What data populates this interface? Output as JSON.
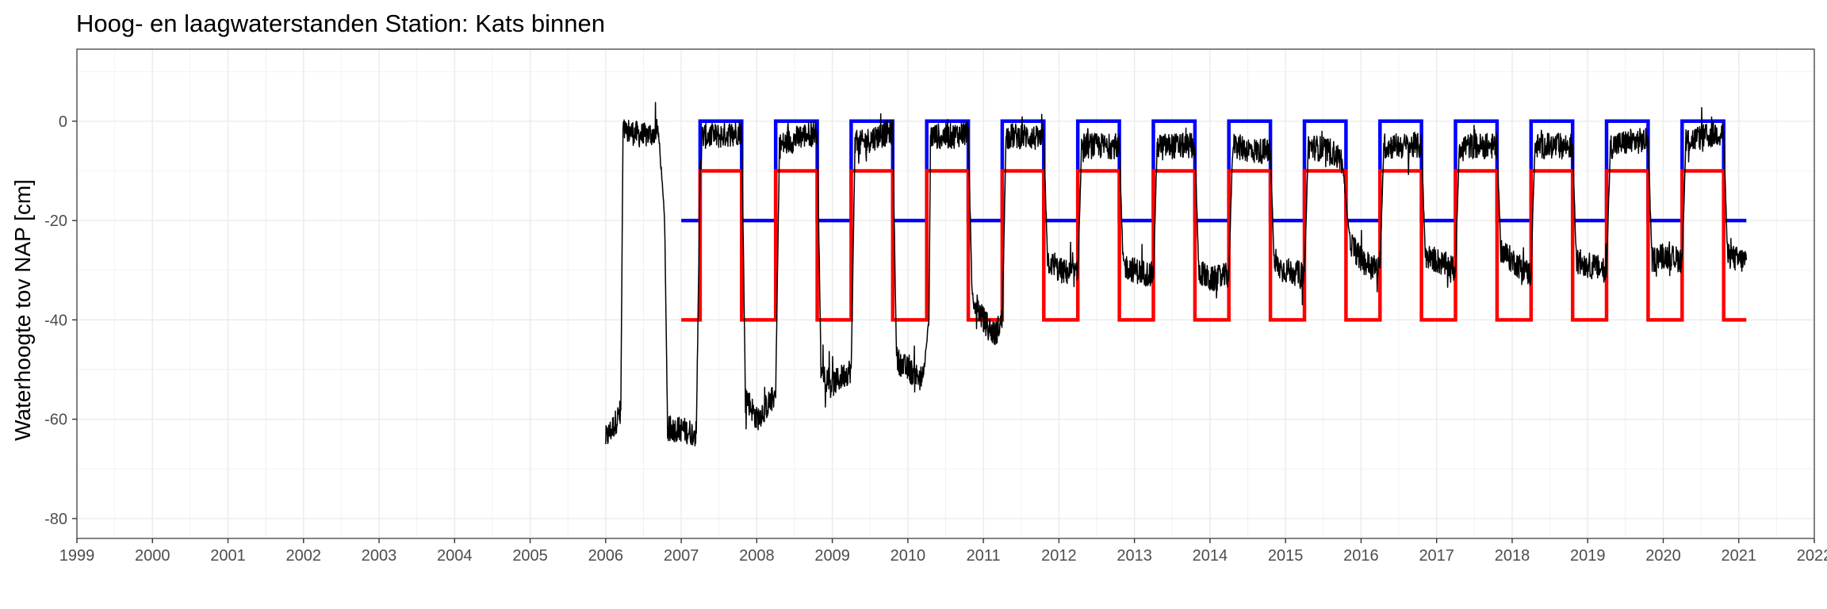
{
  "chart_data": {
    "type": "line",
    "title": "Hoog- en laagwaterstanden Station: Kats binnen",
    "xlabel": "",
    "ylabel": "Waterhoogte tov NAP [cm]",
    "xlim": [
      1999,
      2022
    ],
    "ylim": [
      -84,
      14.5
    ],
    "x_ticks": [
      "1999",
      "2000",
      "2001",
      "2002",
      "2003",
      "2004",
      "2005",
      "2006",
      "2007",
      "2008",
      "2009",
      "2010",
      "2011",
      "2012",
      "2013",
      "2014",
      "2015",
      "2016",
      "2017",
      "2018",
      "2019",
      "2020",
      "2021",
      "2022"
    ],
    "y_ticks": [
      0,
      -20,
      -40,
      -60,
      -80
    ],
    "grid": true,
    "legend": "none",
    "series": [
      {
        "color": "#0000ff",
        "style": "step",
        "x": [
          2007.0,
          2007.25,
          2007.25,
          2007.8,
          2007.8,
          2008.25,
          2008.25,
          2008.8,
          2008.8,
          2009.25,
          2009.25,
          2009.8,
          2009.8,
          2010.25,
          2010.25,
          2010.8,
          2010.8,
          2011.25,
          2011.25,
          2011.8,
          2011.8,
          2012.25,
          2012.25,
          2012.8,
          2012.8,
          2013.25,
          2013.25,
          2013.8,
          2013.8,
          2014.25,
          2014.25,
          2014.8,
          2014.8,
          2015.25,
          2015.25,
          2015.8,
          2015.8,
          2016.25,
          2016.25,
          2016.8,
          2016.8,
          2017.25,
          2017.25,
          2017.8,
          2017.8,
          2018.25,
          2018.25,
          2018.8,
          2018.8,
          2019.25,
          2019.25,
          2019.8,
          2019.8,
          2020.25,
          2020.25,
          2020.8,
          2020.8,
          2021.1
        ],
        "y": [
          -20,
          -20,
          0,
          0,
          -20,
          -20,
          0,
          0,
          -20,
          -20,
          0,
          0,
          -20,
          -20,
          0,
          0,
          -20,
          -20,
          0,
          0,
          -20,
          -20,
          0,
          0,
          -20,
          -20,
          0,
          0,
          -20,
          -20,
          0,
          0,
          -20,
          -20,
          0,
          0,
          -20,
          -20,
          0,
          0,
          -20,
          -20,
          0,
          0,
          -20,
          -20,
          0,
          0,
          -20,
          -20,
          0,
          0,
          -20,
          -20,
          0,
          0,
          -20,
          -20
        ]
      },
      {
        "color": "#ff0000",
        "style": "step",
        "x": [
          2007.0,
          2007.25,
          2007.25,
          2007.8,
          2007.8,
          2008.25,
          2008.25,
          2008.8,
          2008.8,
          2009.25,
          2009.25,
          2009.8,
          2009.8,
          2010.25,
          2010.25,
          2010.8,
          2010.8,
          2011.25,
          2011.25,
          2011.8,
          2011.8,
          2012.25,
          2012.25,
          2012.8,
          2012.8,
          2013.25,
          2013.25,
          2013.8,
          2013.8,
          2014.25,
          2014.25,
          2014.8,
          2014.8,
          2015.25,
          2015.25,
          2015.8,
          2015.8,
          2016.25,
          2016.25,
          2016.8,
          2016.8,
          2017.25,
          2017.25,
          2017.8,
          2017.8,
          2018.25,
          2018.25,
          2018.8,
          2018.8,
          2019.25,
          2019.25,
          2019.8,
          2019.8,
          2020.25,
          2020.25,
          2020.8,
          2020.8,
          2021.1
        ],
        "y": [
          -40,
          -40,
          -10,
          -10,
          -40,
          -40,
          -10,
          -10,
          -40,
          -40,
          -10,
          -10,
          -40,
          -40,
          -10,
          -10,
          -40,
          -40,
          -10,
          -10,
          -40,
          -40,
          -10,
          -10,
          -40,
          -40,
          -10,
          -10,
          -40,
          -40,
          -10,
          -10,
          -40,
          -40,
          -10,
          -10,
          -40,
          -40,
          -10,
          -10,
          -40,
          -40,
          -10,
          -10,
          -40,
          -40,
          -10,
          -10,
          -40,
          -40,
          -10,
          -10,
          -40,
          -40,
          -10,
          -10,
          -40,
          -40
        ]
      },
      {
        "color": "#000000",
        "style": "noisy",
        "x": [
          2006.0,
          2006.12,
          2006.2,
          2006.23,
          2006.3,
          2006.5,
          2006.7,
          2006.78,
          2006.82,
          2007.0,
          2007.2,
          2007.25,
          2007.28,
          2007.5,
          2007.8,
          2007.85,
          2008.0,
          2008.25,
          2008.3,
          2008.6,
          2008.8,
          2008.85,
          2009.0,
          2009.25,
          2009.3,
          2009.6,
          2009.8,
          2009.85,
          2010.0,
          2010.2,
          2010.28,
          2010.3,
          2010.6,
          2010.8,
          2010.85,
          2011.0,
          2011.15,
          2011.25,
          2011.3,
          2011.6,
          2011.8,
          2011.85,
          2012.0,
          2012.25,
          2012.3,
          2012.6,
          2012.8,
          2012.85,
          2013.0,
          2013.25,
          2013.3,
          2013.6,
          2013.8,
          2013.85,
          2014.0,
          2014.25,
          2014.3,
          2014.6,
          2014.8,
          2014.85,
          2015.0,
          2015.25,
          2015.3,
          2015.6,
          2015.75,
          2015.85,
          2016.0,
          2016.25,
          2016.3,
          2016.6,
          2016.8,
          2016.85,
          2017.0,
          2017.25,
          2017.3,
          2017.6,
          2017.8,
          2017.85,
          2018.0,
          2018.25,
          2018.3,
          2018.6,
          2018.8,
          2018.85,
          2019.0,
          2019.25,
          2019.3,
          2019.6,
          2019.8,
          2019.85,
          2020.0,
          2020.25,
          2020.3,
          2020.6,
          2020.8,
          2020.85,
          2021.0,
          2021.1
        ],
        "y": [
          -64,
          -61,
          -58,
          -2,
          -2,
          -3,
          -2,
          -20,
          -62,
          -62,
          -63,
          -10,
          -3,
          -3,
          -2,
          -55,
          -60,
          -55,
          -5,
          -3,
          -2,
          -50,
          -53,
          -50,
          -5,
          -3,
          -2,
          -48,
          -50,
          -52,
          -40,
          -3,
          -3,
          -2,
          -35,
          -40,
          -43,
          -40,
          -3,
          -3,
          -4,
          -28,
          -30,
          -31,
          -5,
          -5,
          -5,
          -29,
          -30,
          -31,
          -5,
          -5,
          -5,
          -30,
          -32,
          -31,
          -5,
          -6,
          -6,
          -29,
          -30,
          -31,
          -5,
          -6,
          -8,
          -24,
          -28,
          -30,
          -5,
          -5,
          -5,
          -27,
          -28,
          -30,
          -5,
          -5,
          -5,
          -26,
          -28,
          -31,
          -5,
          -5,
          -5,
          -28,
          -29,
          -30,
          -5,
          -4,
          -4,
          -28,
          -27,
          -28,
          -4,
          -3,
          -2,
          -27,
          -28,
          -28
        ]
      }
    ]
  }
}
